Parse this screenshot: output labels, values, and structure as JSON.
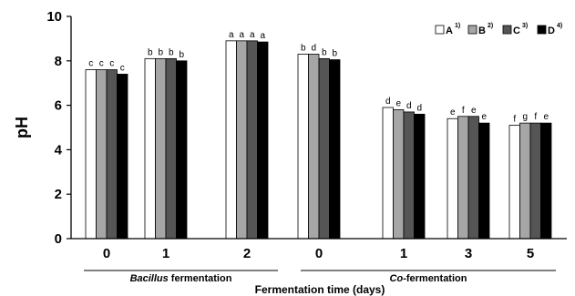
{
  "chart_data": {
    "type": "bar",
    "ylabel": "pH",
    "xlabel": "Fermentation time (days)",
    "ylim": [
      0,
      10
    ],
    "yticks": [
      0,
      2,
      4,
      6,
      8,
      10
    ],
    "categories": [
      "0",
      "1",
      "2",
      "0",
      "1",
      "3",
      "5"
    ],
    "groups": [
      {
        "label_lead": "Bacillus",
        "label_rest": " fermentation",
        "categories": [
          0,
          1,
          2
        ]
      },
      {
        "label_lead": "Co",
        "label_rest": "-fermentation",
        "categories": [
          3,
          4,
          5,
          6
        ]
      }
    ],
    "series": [
      {
        "name": "A",
        "sup": "1)",
        "color": "#ffffff",
        "values": [
          7.6,
          8.1,
          8.9,
          8.3,
          5.9,
          5.4,
          5.1
        ],
        "letters": [
          "c",
          "b",
          "a",
          "b",
          "d",
          "e",
          "f"
        ]
      },
      {
        "name": "B",
        "sup": "2)",
        "color": "#a6a6a6",
        "values": [
          7.6,
          8.1,
          8.9,
          8.3,
          5.8,
          5.5,
          5.2
        ],
        "letters": [
          "c",
          "b",
          "a",
          "d",
          "e",
          "f",
          "g"
        ]
      },
      {
        "name": "C",
        "sup": "3)",
        "color": "#555555",
        "values": [
          7.6,
          8.1,
          8.9,
          8.1,
          5.7,
          5.5,
          5.2
        ],
        "letters": [
          "c",
          "b",
          "a",
          "b",
          "d",
          "e",
          "f"
        ]
      },
      {
        "name": "D",
        "sup": "4)",
        "color": "#000000",
        "values": [
          7.4,
          8.0,
          8.85,
          8.05,
          5.6,
          5.2,
          5.2
        ],
        "letters": [
          "c",
          "b",
          "a",
          "b",
          "d",
          "e",
          "e"
        ]
      }
    ],
    "legend_position": "top-right",
    "grid": false
  }
}
